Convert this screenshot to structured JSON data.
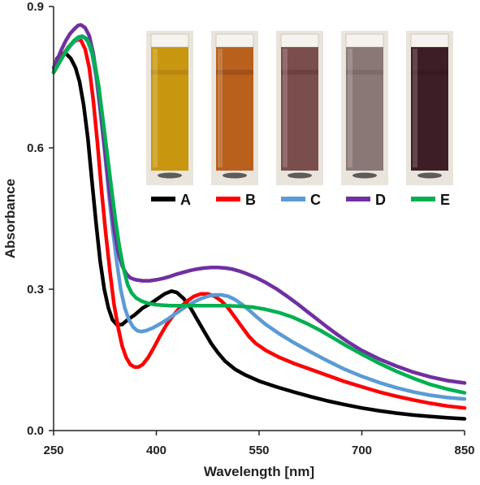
{
  "chart_data": {
    "type": "line",
    "title": "",
    "xlabel": "Wavelength [nm]",
    "ylabel": "Absorbance",
    "xlim": [
      250,
      850
    ],
    "ylim": [
      0,
      0.9
    ],
    "x_ticks": [
      "250",
      "400",
      "550",
      "700",
      "850"
    ],
    "y_ticks": [
      "0.0",
      "0.3",
      "0.6",
      "0.9"
    ],
    "grid": false,
    "legend_position": "top-right",
    "series": [
      {
        "name": "A",
        "color": "#000000",
        "points": [
          [
            250,
            0.76
          ],
          [
            255,
            0.79
          ],
          [
            262,
            0.8
          ],
          [
            268,
            0.8
          ],
          [
            275,
            0.79
          ],
          [
            282,
            0.77
          ],
          [
            288,
            0.74
          ],
          [
            294,
            0.69
          ],
          [
            300,
            0.62
          ],
          [
            306,
            0.53
          ],
          [
            312,
            0.44
          ],
          [
            318,
            0.36
          ],
          [
            324,
            0.3
          ],
          [
            330,
            0.26
          ],
          [
            336,
            0.235
          ],
          [
            342,
            0.225
          ],
          [
            350,
            0.225
          ],
          [
            358,
            0.235
          ],
          [
            368,
            0.245
          ],
          [
            380,
            0.26
          ],
          [
            392,
            0.27
          ],
          [
            402,
            0.28
          ],
          [
            412,
            0.29
          ],
          [
            422,
            0.296
          ],
          [
            430,
            0.293
          ],
          [
            440,
            0.28
          ],
          [
            450,
            0.26
          ],
          [
            460,
            0.235
          ],
          [
            470,
            0.21
          ],
          [
            480,
            0.185
          ],
          [
            490,
            0.165
          ],
          [
            500,
            0.148
          ],
          [
            515,
            0.13
          ],
          [
            530,
            0.118
          ],
          [
            550,
            0.105
          ],
          [
            575,
            0.093
          ],
          [
            600,
            0.082
          ],
          [
            625,
            0.072
          ],
          [
            650,
            0.063
          ],
          [
            675,
            0.055
          ],
          [
            700,
            0.048
          ],
          [
            725,
            0.042
          ],
          [
            750,
            0.037
          ],
          [
            775,
            0.033
          ],
          [
            800,
            0.03
          ],
          [
            825,
            0.027
          ],
          [
            850,
            0.025
          ]
        ]
      },
      {
        "name": "B",
        "color": "#ff0000",
        "points": [
          [
            250,
            0.76
          ],
          [
            258,
            0.78
          ],
          [
            265,
            0.8
          ],
          [
            272,
            0.815
          ],
          [
            280,
            0.825
          ],
          [
            286,
            0.83
          ],
          [
            290,
            0.828
          ],
          [
            296,
            0.81
          ],
          [
            302,
            0.77
          ],
          [
            308,
            0.7
          ],
          [
            314,
            0.61
          ],
          [
            320,
            0.51
          ],
          [
            326,
            0.42
          ],
          [
            332,
            0.34
          ],
          [
            338,
            0.27
          ],
          [
            344,
            0.22
          ],
          [
            350,
            0.18
          ],
          [
            356,
            0.155
          ],
          [
            362,
            0.14
          ],
          [
            368,
            0.135
          ],
          [
            374,
            0.135
          ],
          [
            380,
            0.14
          ],
          [
            388,
            0.155
          ],
          [
            396,
            0.175
          ],
          [
            405,
            0.2
          ],
          [
            415,
            0.225
          ],
          [
            425,
            0.245
          ],
          [
            435,
            0.262
          ],
          [
            445,
            0.275
          ],
          [
            455,
            0.285
          ],
          [
            465,
            0.29
          ],
          [
            475,
            0.29
          ],
          [
            485,
            0.285
          ],
          [
            495,
            0.275
          ],
          [
            505,
            0.26
          ],
          [
            515,
            0.24
          ],
          [
            525,
            0.22
          ],
          [
            535,
            0.2
          ],
          [
            545,
            0.185
          ],
          [
            560,
            0.17
          ],
          [
            580,
            0.155
          ],
          [
            600,
            0.143
          ],
          [
            625,
            0.13
          ],
          [
            650,
            0.117
          ],
          [
            675,
            0.104
          ],
          [
            700,
            0.093
          ],
          [
            725,
            0.082
          ],
          [
            750,
            0.073
          ],
          [
            775,
            0.065
          ],
          [
            800,
            0.058
          ],
          [
            825,
            0.052
          ],
          [
            850,
            0.048
          ]
        ]
      },
      {
        "name": "C",
        "color": "#5b9bd5",
        "points": [
          [
            250,
            0.76
          ],
          [
            258,
            0.78
          ],
          [
            266,
            0.8
          ],
          [
            274,
            0.815
          ],
          [
            282,
            0.828
          ],
          [
            288,
            0.835
          ],
          [
            294,
            0.835
          ],
          [
            300,
            0.825
          ],
          [
            306,
            0.8
          ],
          [
            312,
            0.75
          ],
          [
            318,
            0.68
          ],
          [
            324,
            0.6
          ],
          [
            330,
            0.51
          ],
          [
            336,
            0.43
          ],
          [
            342,
            0.36
          ],
          [
            348,
            0.3
          ],
          [
            354,
            0.26
          ],
          [
            360,
            0.235
          ],
          [
            366,
            0.22
          ],
          [
            372,
            0.212
          ],
          [
            378,
            0.21
          ],
          [
            385,
            0.212
          ],
          [
            395,
            0.218
          ],
          [
            405,
            0.226
          ],
          [
            415,
            0.235
          ],
          [
            425,
            0.245
          ],
          [
            435,
            0.255
          ],
          [
            445,
            0.265
          ],
          [
            455,
            0.273
          ],
          [
            465,
            0.28
          ],
          [
            475,
            0.285
          ],
          [
            485,
            0.288
          ],
          [
            495,
            0.288
          ],
          [
            505,
            0.285
          ],
          [
            515,
            0.278
          ],
          [
            525,
            0.268
          ],
          [
            535,
            0.256
          ],
          [
            545,
            0.243
          ],
          [
            560,
            0.225
          ],
          [
            580,
            0.205
          ],
          [
            600,
            0.187
          ],
          [
            625,
            0.167
          ],
          [
            650,
            0.148
          ],
          [
            675,
            0.13
          ],
          [
            700,
            0.115
          ],
          [
            725,
            0.102
          ],
          [
            750,
            0.091
          ],
          [
            775,
            0.082
          ],
          [
            800,
            0.075
          ],
          [
            825,
            0.07
          ],
          [
            850,
            0.067
          ]
        ]
      },
      {
        "name": "D",
        "color": "#7030a0",
        "points": [
          [
            250,
            0.77
          ],
          [
            256,
            0.79
          ],
          [
            262,
            0.81
          ],
          [
            268,
            0.828
          ],
          [
            274,
            0.842
          ],
          [
            280,
            0.852
          ],
          [
            286,
            0.86
          ],
          [
            290,
            0.861
          ],
          [
            296,
            0.855
          ],
          [
            302,
            0.838
          ],
          [
            308,
            0.8
          ],
          [
            314,
            0.74
          ],
          [
            320,
            0.66
          ],
          [
            326,
            0.58
          ],
          [
            332,
            0.5
          ],
          [
            338,
            0.43
          ],
          [
            344,
            0.38
          ],
          [
            350,
            0.35
          ],
          [
            356,
            0.333
          ],
          [
            362,
            0.324
          ],
          [
            370,
            0.32
          ],
          [
            380,
            0.318
          ],
          [
            390,
            0.318
          ],
          [
            400,
            0.32
          ],
          [
            410,
            0.323
          ],
          [
            420,
            0.327
          ],
          [
            430,
            0.332
          ],
          [
            440,
            0.336
          ],
          [
            450,
            0.34
          ],
          [
            460,
            0.343
          ],
          [
            470,
            0.345
          ],
          [
            480,
            0.346
          ],
          [
            490,
            0.346
          ],
          [
            500,
            0.345
          ],
          [
            510,
            0.343
          ],
          [
            520,
            0.339
          ],
          [
            530,
            0.334
          ],
          [
            545,
            0.325
          ],
          [
            560,
            0.314
          ],
          [
            575,
            0.301
          ],
          [
            590,
            0.286
          ],
          [
            605,
            0.27
          ],
          [
            620,
            0.253
          ],
          [
            635,
            0.236
          ],
          [
            650,
            0.219
          ],
          [
            665,
            0.203
          ],
          [
            680,
            0.188
          ],
          [
            700,
            0.17
          ],
          [
            725,
            0.152
          ],
          [
            750,
            0.137
          ],
          [
            775,
            0.124
          ],
          [
            800,
            0.114
          ],
          [
            825,
            0.106
          ],
          [
            850,
            0.101
          ]
        ]
      },
      {
        "name": "E",
        "color": "#00b050",
        "points": [
          [
            250,
            0.76
          ],
          [
            256,
            0.775
          ],
          [
            262,
            0.79
          ],
          [
            268,
            0.805
          ],
          [
            274,
            0.818
          ],
          [
            280,
            0.828
          ],
          [
            286,
            0.835
          ],
          [
            292,
            0.837
          ],
          [
            298,
            0.832
          ],
          [
            304,
            0.815
          ],
          [
            310,
            0.78
          ],
          [
            316,
            0.73
          ],
          [
            322,
            0.66
          ],
          [
            328,
            0.59
          ],
          [
            334,
            0.52
          ],
          [
            340,
            0.45
          ],
          [
            346,
            0.39
          ],
          [
            352,
            0.345
          ],
          [
            358,
            0.31
          ],
          [
            364,
            0.292
          ],
          [
            370,
            0.282
          ],
          [
            378,
            0.275
          ],
          [
            388,
            0.27
          ],
          [
            400,
            0.267
          ],
          [
            420,
            0.265
          ],
          [
            440,
            0.265
          ],
          [
            460,
            0.265
          ],
          [
            480,
            0.265
          ],
          [
            500,
            0.265
          ],
          [
            520,
            0.264
          ],
          [
            540,
            0.262
          ],
          [
            560,
            0.257
          ],
          [
            580,
            0.25
          ],
          [
            600,
            0.24
          ],
          [
            620,
            0.227
          ],
          [
            640,
            0.212
          ],
          [
            660,
            0.195
          ],
          [
            680,
            0.178
          ],
          [
            700,
            0.162
          ],
          [
            725,
            0.143
          ],
          [
            750,
            0.126
          ],
          [
            775,
            0.111
          ],
          [
            800,
            0.098
          ],
          [
            825,
            0.088
          ],
          [
            850,
            0.08
          ]
        ]
      }
    ],
    "inset_photos": [
      {
        "name": "A",
        "liquid_color": "#c8960f",
        "band_color": "#b48410"
      },
      {
        "name": "B",
        "liquid_color": "#b8601c",
        "band_color": "#9c4e18"
      },
      {
        "name": "C",
        "liquid_color": "#7a4e4c",
        "band_color": "#6a3f3d"
      },
      {
        "name": "D",
        "liquid_color": "#8a7876",
        "band_color": "#7a6866"
      },
      {
        "name": "E",
        "liquid_color": "#3e1e26",
        "band_color": "#341820"
      }
    ]
  }
}
